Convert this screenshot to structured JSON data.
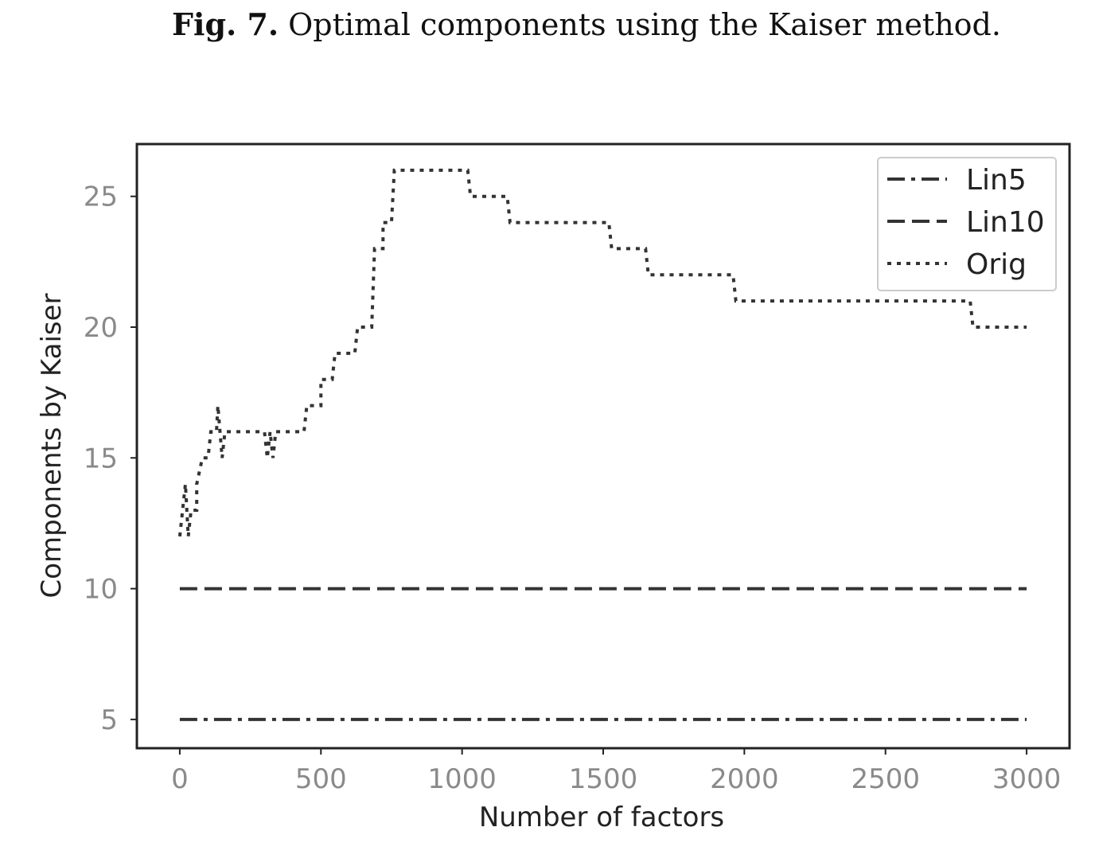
{
  "caption_label": "Fig. 7.",
  "caption_text": "Optimal components using the Kaiser method.",
  "chart_data": {
    "type": "line",
    "xlabel": "Number of factors",
    "ylabel": "Components by Kaiser",
    "xlim": [
      -152,
      3152
    ],
    "ylim": [
      3.9,
      27.0
    ],
    "xticks": [
      0,
      500,
      1000,
      1500,
      2000,
      2500,
      3000
    ],
    "yticks": [
      5,
      10,
      15,
      20,
      25
    ],
    "legend": "upper right",
    "series": [
      {
        "name": "Lin5",
        "color": "#333333",
        "linestyle": "dashdot",
        "x": [
          0,
          3000
        ],
        "values": [
          5,
          5
        ]
      },
      {
        "name": "Lin10",
        "color": "#333333",
        "linestyle": "dashed",
        "x": [
          0,
          3000
        ],
        "values": [
          10,
          10
        ]
      },
      {
        "name": "Orig",
        "color": "#333333",
        "linestyle": "dotted",
        "x": [
          0,
          10,
          20,
          30,
          40,
          60,
          60,
          80,
          100,
          110,
          130,
          135,
          150,
          160,
          300,
          310,
          320,
          330,
          340,
          440,
          450,
          500,
          500,
          540,
          550,
          620,
          630,
          680,
          690,
          720,
          720,
          750,
          760,
          1020,
          1030,
          1160,
          1170,
          1520,
          1530,
          1650,
          1660,
          1960,
          1970,
          2800,
          2810,
          3000
        ],
        "values": [
          12,
          13,
          14,
          12,
          13,
          13,
          14,
          15,
          15,
          16,
          16,
          17,
          15,
          16,
          16,
          15,
          16,
          15,
          16,
          16,
          17,
          17,
          18,
          18,
          19,
          19,
          20,
          20,
          23,
          23,
          24,
          24,
          26,
          26,
          25,
          25,
          24,
          24,
          23,
          23,
          22,
          22,
          21,
          21,
          20,
          20
        ]
      }
    ]
  }
}
